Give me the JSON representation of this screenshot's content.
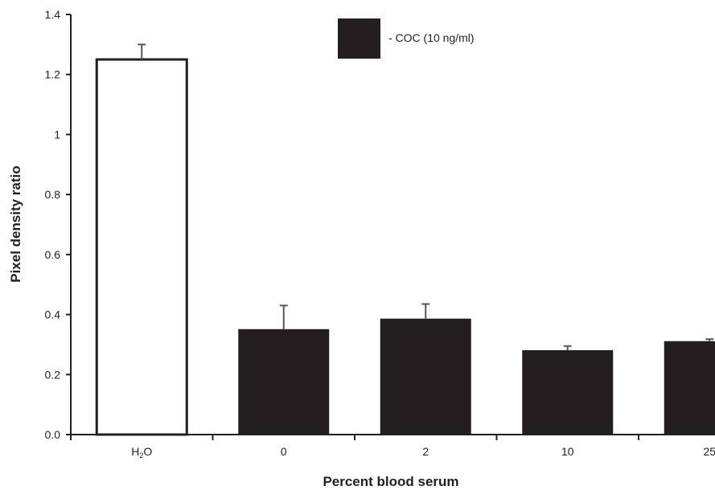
{
  "chart_data": {
    "type": "bar",
    "title": "",
    "xlabel": "Percent blood serum",
    "ylabel": "Pixel density ratio",
    "ylim": [
      0,
      1.4
    ],
    "yticks": [
      "0.0",
      "0.2",
      "0.4",
      "0.6",
      "0.8",
      "1",
      "1.2",
      "1.4"
    ],
    "categories": [
      {
        "label": "H",
        "sub": "2",
        "tail": "O"
      },
      {
        "label": "0"
      },
      {
        "label": "2"
      },
      {
        "label": "10"
      },
      {
        "label": "25"
      }
    ],
    "values": [
      1.25,
      0.35,
      0.385,
      0.28,
      0.31
    ],
    "errors": [
      0.05,
      0.08,
      0.05,
      0.015,
      0.008
    ],
    "bar_fill": [
      "#ffffff",
      "#231f20",
      "#231f20",
      "#231f20",
      "#231f20"
    ],
    "bar_stroke": "#231f20",
    "legend": {
      "label": "- COC (10 ng/ml)",
      "color": "#231f20",
      "position": "top-center"
    },
    "grid": false
  }
}
